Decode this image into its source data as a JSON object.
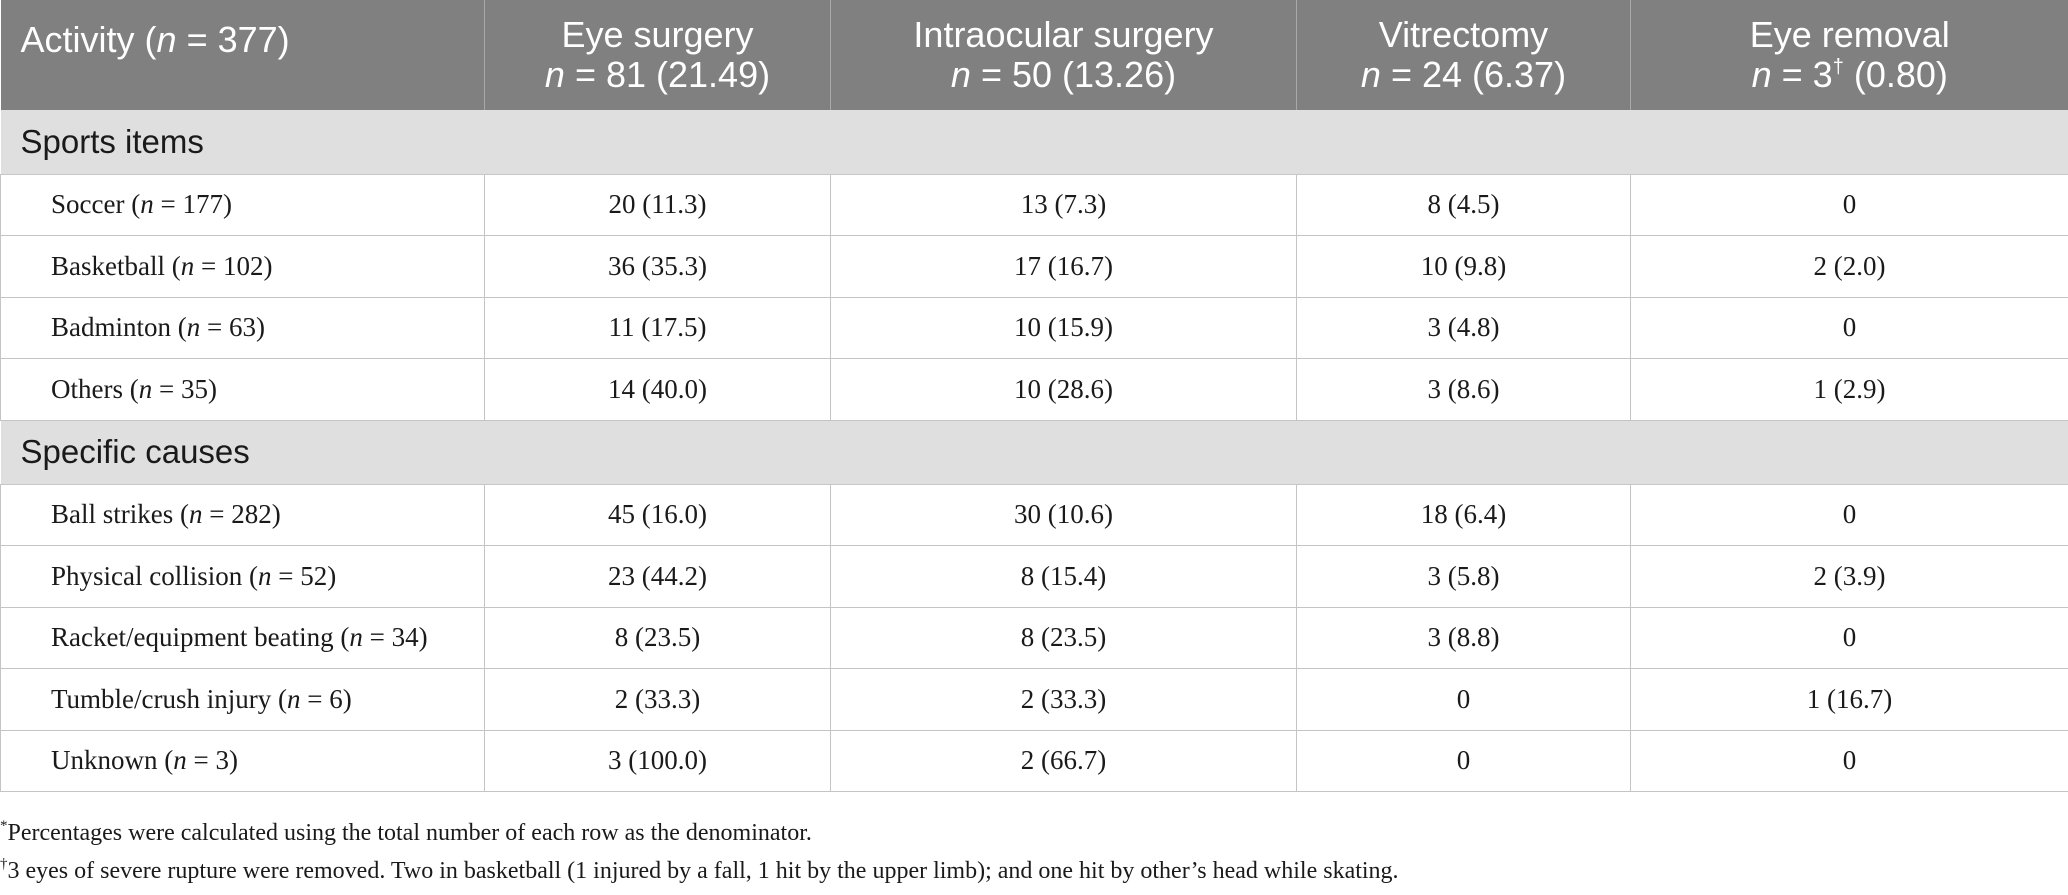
{
  "table": {
    "header": {
      "activity": {
        "label": "Activity",
        "n_label": "n",
        "n_value": "= 377",
        "open": "(",
        "close": ")"
      },
      "columns": [
        {
          "title": "Eye surgery",
          "n_label": "n",
          "n_value": "= 81 (21.49)",
          "mark": ""
        },
        {
          "title": "Intraocular surgery",
          "n_label": "n",
          "n_value": "= 50 (13.26)",
          "mark": ""
        },
        {
          "title": "Vitrectomy",
          "n_label": "n",
          "n_value": "= 24 (6.37)",
          "mark": ""
        },
        {
          "title": "Eye removal",
          "n_label": "n",
          "n_value": "= 3",
          "mark": "†",
          "n_suffix": "(0.80)"
        }
      ]
    },
    "sections": [
      {
        "title": "Sports items",
        "rows": [
          {
            "label": "Soccer",
            "n": "177",
            "values": [
              "20 (11.3)",
              "13 (7.3)",
              "8 (4.5)",
              "0"
            ]
          },
          {
            "label": "Basketball",
            "n": "102",
            "values": [
              "36 (35.3)",
              "17 (16.7)",
              "10 (9.8)",
              "2 (2.0)"
            ]
          },
          {
            "label": "Badminton",
            "n": "63",
            "values": [
              "11 (17.5)",
              "10 (15.9)",
              "3 (4.8)",
              "0"
            ]
          },
          {
            "label": "Others",
            "n": "35",
            "values": [
              "14 (40.0)",
              "10 (28.6)",
              "3 (8.6)",
              "1 (2.9)"
            ]
          }
        ]
      },
      {
        "title": "Specific causes",
        "rows": [
          {
            "label": "Ball strikes",
            "n": "282",
            "values": [
              "45 (16.0)",
              "30 (10.6)",
              "18 (6.4)",
              "0"
            ]
          },
          {
            "label": "Physical collision",
            "n": "52",
            "values": [
              "23 (44.2)",
              "8 (15.4)",
              "3 (5.8)",
              "2 (3.9)"
            ]
          },
          {
            "label": "Racket/equipment beating",
            "n": "34",
            "values": [
              "8 (23.5)",
              "8 (23.5)",
              "3 (8.8)",
              "0"
            ]
          },
          {
            "label": "Tumble/crush injury",
            "n": "6",
            "values": [
              "2 (33.3)",
              "2 (33.3)",
              "0",
              "1 (16.7)"
            ]
          },
          {
            "label": "Unknown",
            "n": "3",
            "values": [
              "3 (100.0)",
              "2 (66.7)",
              "0",
              "0"
            ]
          }
        ]
      }
    ]
  },
  "footnotes": [
    {
      "mark": "*",
      "text": "Percentages were calculated using the total number of each row as the denominator."
    },
    {
      "mark": "†",
      "text": "3 eyes of severe rupture were removed. Two in basketball (1 injured by a fall, 1 hit by the upper limb); and one hit by other’s head while skating."
    }
  ]
}
